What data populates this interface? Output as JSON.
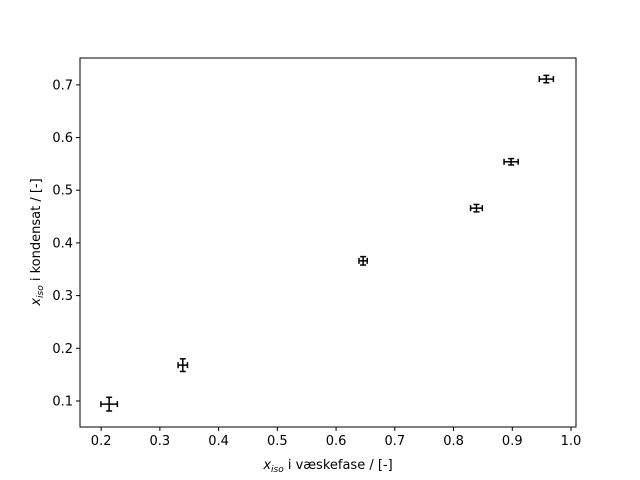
{
  "chart_data": {
    "type": "errorbar",
    "xlabel": [
      "x",
      "iso",
      " i væskefase / [-]"
    ],
    "ylabel": [
      "x",
      "iso",
      " i kondensat / [-]"
    ],
    "x": [
      0.2136,
      0.339,
      0.646,
      0.839,
      0.898,
      0.958
    ],
    "values": [
      0.094,
      0.168,
      0.366,
      0.466,
      0.554,
      0.711
    ],
    "xerr": [
      0.014,
      0.008,
      0.007,
      0.01,
      0.012,
      0.012
    ],
    "yerr": [
      0.013,
      0.012,
      0.008,
      0.007,
      0.006,
      0.007
    ],
    "color": "#000000",
    "xlim": [
      0.164,
      1.0085
    ],
    "ylim": [
      0.0506,
      0.751
    ],
    "xticks": [
      0.2,
      0.3,
      0.4,
      0.5,
      0.6,
      0.7,
      0.8,
      0.9,
      {
        "value": 1,
        "label": "1.0"
      }
    ],
    "yticks": [
      0.1,
      0.2,
      0.3,
      0.4,
      0.5,
      0.6,
      0.7
    ]
  }
}
